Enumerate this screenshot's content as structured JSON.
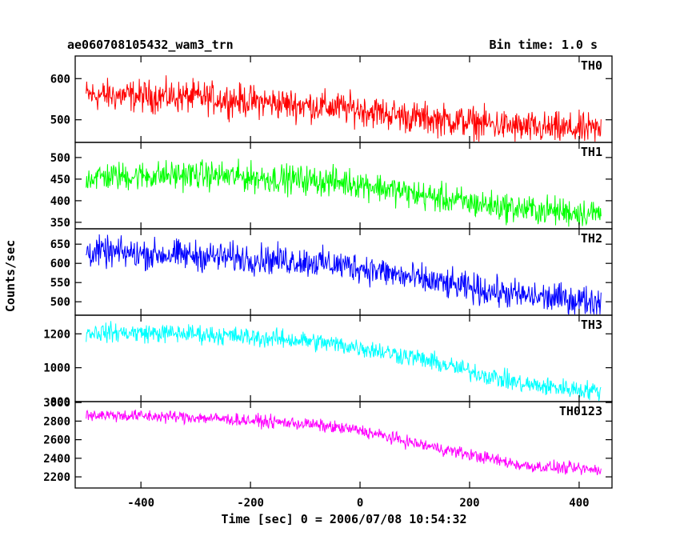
{
  "chart_data": {
    "type": "line",
    "title": "ae060708105432_wam3_trn",
    "bin_time": "Bin time: 1.0 s",
    "xlabel": "Time [sec] 0 = 2006/07/08 10:54:32",
    "ylabel": "Counts/sec",
    "xlim": [
      -520,
      460
    ],
    "x_range": [
      -500,
      440
    ],
    "xticks": [
      -400,
      -200,
      0,
      200,
      400
    ],
    "panels": [
      {
        "name": "TH0",
        "color": "#ff0000",
        "ylim": [
          445,
          655
        ],
        "yticks": [
          500,
          600
        ],
        "trend": [
          [
            -500,
            560
          ],
          [
            -300,
            555
          ],
          [
            -100,
            535
          ],
          [
            0,
            525
          ],
          [
            100,
            505
          ],
          [
            200,
            495
          ],
          [
            300,
            480
          ],
          [
            440,
            475
          ]
        ],
        "noise": 35
      },
      {
        "name": "TH1",
        "color": "#00ff00",
        "ylim": [
          335,
          535
        ],
        "yticks": [
          350,
          400,
          450,
          500
        ],
        "trend": [
          [
            -500,
            455
          ],
          [
            -300,
            460
          ],
          [
            -100,
            448
          ],
          [
            0,
            440
          ],
          [
            100,
            415
          ],
          [
            200,
            395
          ],
          [
            300,
            380
          ],
          [
            440,
            370
          ]
        ],
        "noise": 30
      },
      {
        "name": "TH2",
        "color": "#0000ff",
        "ylim": [
          465,
          690
        ],
        "yticks": [
          500,
          550,
          600,
          650
        ],
        "trend": [
          [
            -500,
            630
          ],
          [
            -300,
            620
          ],
          [
            -100,
            605
          ],
          [
            0,
            590
          ],
          [
            100,
            560
          ],
          [
            200,
            535
          ],
          [
            300,
            515
          ],
          [
            440,
            500
          ]
        ],
        "noise": 35
      },
      {
        "name": "TH3",
        "color": "#00ffff",
        "ylim": [
          800,
          1310
        ],
        "yticks": [
          800,
          1000,
          1200
        ],
        "trend": [
          [
            -500,
            1210
          ],
          [
            -300,
            1200
          ],
          [
            -100,
            1160
          ],
          [
            0,
            1120
          ],
          [
            100,
            1060
          ],
          [
            200,
            980
          ],
          [
            300,
            900
          ],
          [
            440,
            860
          ]
        ],
        "noise": 50
      },
      {
        "name": "TH0123",
        "color": "#ff00ff",
        "ylim": [
          2080,
          3010
        ],
        "yticks": [
          2200,
          2400,
          2600,
          2800,
          3000
        ],
        "trend": [
          [
            -500,
            2870
          ],
          [
            -300,
            2840
          ],
          [
            -100,
            2770
          ],
          [
            0,
            2700
          ],
          [
            100,
            2560
          ],
          [
            200,
            2440
          ],
          [
            300,
            2320
          ],
          [
            440,
            2270
          ]
        ],
        "noise": 60
      }
    ]
  }
}
